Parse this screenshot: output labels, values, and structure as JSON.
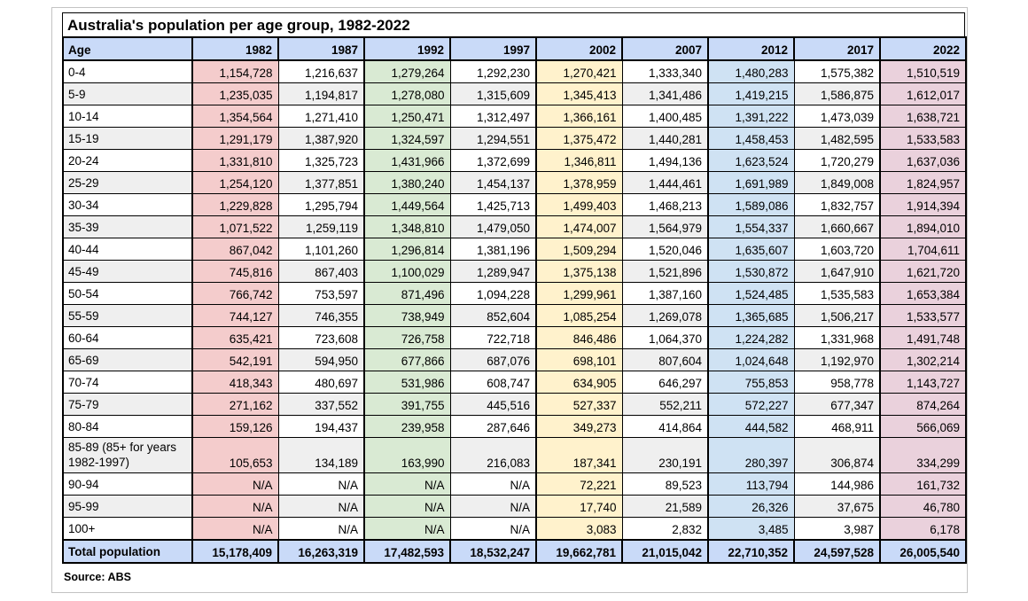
{
  "title": "Australia's population per age group, 1982-2022",
  "source": "Source: ABS",
  "colors": {
    "header_bg": "#c9daf8",
    "col_1982": "#f4cccc",
    "col_1992": "#d9ead3",
    "col_2002": "#fff2cc",
    "col_2012": "#cfe2f3",
    "col_2022": "#ead1dc",
    "stripe": "#efefef",
    "border": "#000000",
    "frame_border": "#c3c3c3"
  },
  "chart_data": {
    "type": "table",
    "title": "Australia's population per age group, 1982-2022",
    "source": "Source: ABS",
    "columns": [
      "Age",
      "1982",
      "1987",
      "1992",
      "1997",
      "2002",
      "2007",
      "2012",
      "2017",
      "2022"
    ],
    "colored_years": [
      "1982",
      "1992",
      "2002",
      "2012",
      "2022"
    ],
    "rows": [
      {
        "label": "0-4",
        "values": [
          "1,154,728",
          "1,216,637",
          "1,279,264",
          "1,292,230",
          "1,270,421",
          "1,333,340",
          "1,480,283",
          "1,575,382",
          "1,510,519"
        ]
      },
      {
        "label": "5-9",
        "values": [
          "1,235,035",
          "1,194,817",
          "1,278,080",
          "1,315,609",
          "1,345,413",
          "1,341,486",
          "1,419,215",
          "1,586,875",
          "1,612,017"
        ]
      },
      {
        "label": "10-14",
        "values": [
          "1,354,564",
          "1,271,410",
          "1,250,471",
          "1,312,497",
          "1,366,161",
          "1,400,485",
          "1,391,222",
          "1,473,039",
          "1,638,721"
        ]
      },
      {
        "label": "15-19",
        "values": [
          "1,291,179",
          "1,387,920",
          "1,324,597",
          "1,294,551",
          "1,375,472",
          "1,440,281",
          "1,458,453",
          "1,482,595",
          "1,533,583"
        ]
      },
      {
        "label": "20-24",
        "values": [
          "1,331,810",
          "1,325,723",
          "1,431,966",
          "1,372,699",
          "1,346,811",
          "1,494,136",
          "1,623,524",
          "1,720,279",
          "1,637,036"
        ]
      },
      {
        "label": "25-29",
        "values": [
          "1,254,120",
          "1,377,851",
          "1,380,240",
          "1,454,137",
          "1,378,959",
          "1,444,461",
          "1,691,989",
          "1,849,008",
          "1,824,957"
        ]
      },
      {
        "label": "30-34",
        "values": [
          "1,229,828",
          "1,295,794",
          "1,449,564",
          "1,425,713",
          "1,499,403",
          "1,468,213",
          "1,589,086",
          "1,832,757",
          "1,914,394"
        ]
      },
      {
        "label": "35-39",
        "values": [
          "1,071,522",
          "1,259,119",
          "1,348,810",
          "1,479,050",
          "1,474,007",
          "1,564,979",
          "1,554,337",
          "1,660,667",
          "1,894,010"
        ]
      },
      {
        "label": "40-44",
        "values": [
          "867,042",
          "1,101,260",
          "1,296,814",
          "1,381,196",
          "1,509,294",
          "1,520,046",
          "1,635,607",
          "1,603,720",
          "1,704,611"
        ]
      },
      {
        "label": "45-49",
        "values": [
          "745,816",
          "867,403",
          "1,100,029",
          "1,289,947",
          "1,375,138",
          "1,521,896",
          "1,530,872",
          "1,647,910",
          "1,621,720"
        ]
      },
      {
        "label": "50-54",
        "values": [
          "766,742",
          "753,597",
          "871,496",
          "1,094,228",
          "1,299,961",
          "1,387,160",
          "1,524,485",
          "1,535,583",
          "1,653,384"
        ]
      },
      {
        "label": "55-59",
        "values": [
          "744,127",
          "746,355",
          "738,949",
          "852,604",
          "1,085,254",
          "1,269,078",
          "1,365,685",
          "1,506,217",
          "1,533,577"
        ]
      },
      {
        "label": "60-64",
        "values": [
          "635,421",
          "723,608",
          "726,758",
          "722,718",
          "846,486",
          "1,064,370",
          "1,224,282",
          "1,331,968",
          "1,491,748"
        ]
      },
      {
        "label": "65-69",
        "values": [
          "542,191",
          "594,950",
          "677,866",
          "687,076",
          "698,101",
          "807,604",
          "1,024,648",
          "1,192,970",
          "1,302,214"
        ]
      },
      {
        "label": "70-74",
        "values": [
          "418,343",
          "480,697",
          "531,986",
          "608,747",
          "634,905",
          "646,297",
          "755,853",
          "958,778",
          "1,143,727"
        ]
      },
      {
        "label": "75-79",
        "values": [
          "271,162",
          "337,552",
          "391,755",
          "445,516",
          "527,337",
          "552,211",
          "572,227",
          "677,347",
          "874,264"
        ]
      },
      {
        "label": "80-84",
        "values": [
          "159,126",
          "194,437",
          "239,958",
          "287,646",
          "349,273",
          "414,864",
          "444,582",
          "468,911",
          "566,069"
        ]
      },
      {
        "label": "85-89 (85+ for years 1982-1997)",
        "values": [
          "105,653",
          "134,189",
          "163,990",
          "216,083",
          "187,341",
          "230,191",
          "280,397",
          "306,874",
          "334,299"
        ]
      },
      {
        "label": "90-94",
        "values": [
          "N/A",
          "N/A",
          "N/A",
          "N/A",
          "72,221",
          "89,523",
          "113,794",
          "144,986",
          "161,732"
        ]
      },
      {
        "label": "95-99",
        "values": [
          "N/A",
          "N/A",
          "N/A",
          "N/A",
          "17,740",
          "21,589",
          "26,326",
          "37,675",
          "46,780"
        ]
      },
      {
        "label": "100+",
        "values": [
          "N/A",
          "N/A",
          "N/A",
          "N/A",
          "3,083",
          "2,832",
          "3,485",
          "3,987",
          "6,178"
        ]
      }
    ],
    "total_row": {
      "label": "Total population",
      "values": [
        "15,178,409",
        "16,263,319",
        "17,482,593",
        "18,532,247",
        "19,662,781",
        "21,015,042",
        "22,710,352",
        "24,597,528",
        "26,005,540"
      ]
    }
  }
}
